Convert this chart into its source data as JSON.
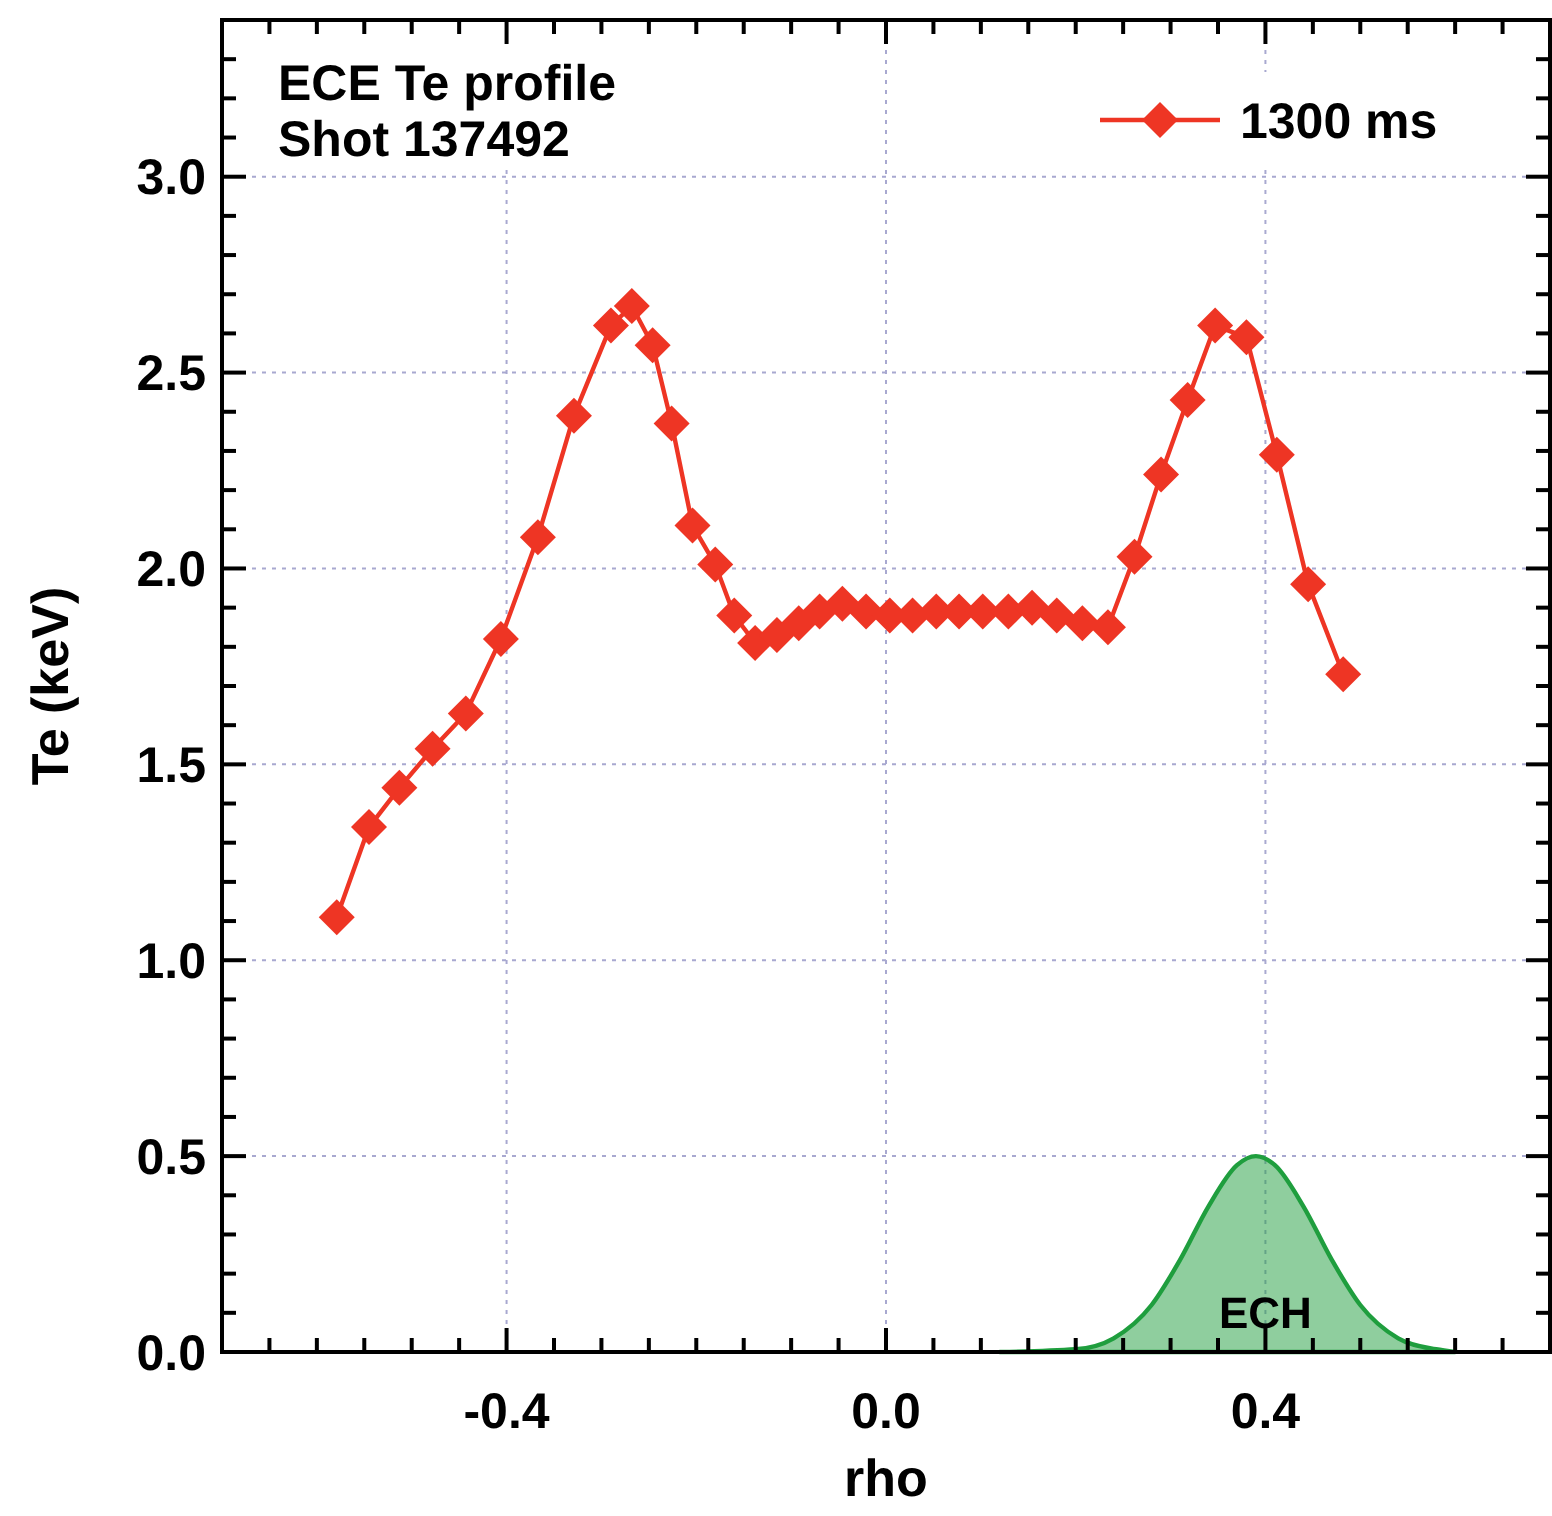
{
  "chart_data": {
    "type": "line",
    "title": "ECE Te profile",
    "subtitle": "Shot 137492",
    "xlabel": "rho",
    "ylabel": "Te (keV)",
    "xlim": [
      -0.7,
      0.7
    ],
    "xticks": [
      {
        "value": -0.65,
        "label": null
      },
      {
        "value": -0.6,
        "label": null
      },
      {
        "value": -0.55,
        "label": null
      },
      {
        "value": -0.5,
        "label": null
      },
      {
        "value": -0.45,
        "label": null
      },
      {
        "value": -0.4,
        "label": "-0.4"
      },
      {
        "value": -0.35,
        "label": null
      },
      {
        "value": -0.3,
        "label": null
      },
      {
        "value": -0.25,
        "label": null
      },
      {
        "value": -0.2,
        "label": null
      },
      {
        "value": -0.15,
        "label": null
      },
      {
        "value": -0.1,
        "label": null
      },
      {
        "value": -0.05,
        "label": null
      },
      {
        "value": 0,
        "label": "0.0"
      },
      {
        "value": 0.05,
        "label": null
      },
      {
        "value": 0.1,
        "label": null
      },
      {
        "value": 0.15,
        "label": null
      },
      {
        "value": 0.2,
        "label": null
      },
      {
        "value": 0.25,
        "label": null
      },
      {
        "value": 0.3,
        "label": null
      },
      {
        "value": 0.35,
        "label": null
      },
      {
        "value": 0.4,
        "label": "0.4"
      },
      {
        "value": 0.45,
        "label": null
      },
      {
        "value": 0.5,
        "label": null
      },
      {
        "value": 0.55,
        "label": null
      },
      {
        "value": 0.6,
        "label": null
      },
      {
        "value": 0.65,
        "label": null
      }
    ],
    "ylim": [
      0,
      3.4
    ],
    "yticks": [
      {
        "value": 0,
        "label": "0.0"
      },
      {
        "value": 0.1,
        "label": null
      },
      {
        "value": 0.2,
        "label": null
      },
      {
        "value": 0.3,
        "label": null
      },
      {
        "value": 0.4,
        "label": null
      },
      {
        "value": 0.5,
        "label": "0.5"
      },
      {
        "value": 0.6,
        "label": null
      },
      {
        "value": 0.7,
        "label": null
      },
      {
        "value": 0.8,
        "label": null
      },
      {
        "value": 0.9,
        "label": null
      },
      {
        "value": 1,
        "label": "1.0"
      },
      {
        "value": 1.1,
        "label": null
      },
      {
        "value": 1.2,
        "label": null
      },
      {
        "value": 1.3,
        "label": null
      },
      {
        "value": 1.4,
        "label": null
      },
      {
        "value": 1.5,
        "label": "1.5"
      },
      {
        "value": 1.6,
        "label": null
      },
      {
        "value": 1.7,
        "label": null
      },
      {
        "value": 1.8,
        "label": null
      },
      {
        "value": 1.9,
        "label": null
      },
      {
        "value": 2,
        "label": "2.0"
      },
      {
        "value": 2.1,
        "label": null
      },
      {
        "value": 2.2,
        "label": null
      },
      {
        "value": 2.3,
        "label": null
      },
      {
        "value": 2.4,
        "label": null
      },
      {
        "value": 2.5,
        "label": "2.5"
      },
      {
        "value": 2.6,
        "label": null
      },
      {
        "value": 2.7,
        "label": null
      },
      {
        "value": 2.8,
        "label": null
      },
      {
        "value": 2.9,
        "label": null
      },
      {
        "value": 3,
        "label": "3.0"
      },
      {
        "value": 3.1,
        "label": null
      },
      {
        "value": 3.2,
        "label": null
      },
      {
        "value": 3.3,
        "label": null
      }
    ],
    "grid": true,
    "legend": "top right",
    "line_style": "solid",
    "series": [
      {
        "name": "1300 ms",
        "color": "#ee3524",
        "marker": "diamond",
        "x": [
          -0.579,
          -0.545,
          -0.513,
          -0.478,
          -0.443,
          -0.406,
          -0.367,
          -0.329,
          -0.29,
          -0.268,
          -0.246,
          -0.226,
          -0.204,
          -0.18,
          -0.16,
          -0.138,
          -0.115,
          -0.092,
          -0.07,
          -0.046,
          -0.021,
          0.004,
          0.028,
          0.053,
          0.077,
          0.102,
          0.129,
          0.154,
          0.18,
          0.207,
          0.234,
          0.262,
          0.29,
          0.318,
          0.347,
          0.38,
          0.412,
          0.445,
          0.482
        ],
        "values": [
          1.11,
          1.34,
          1.44,
          1.54,
          1.63,
          1.82,
          2.08,
          2.39,
          2.62,
          2.67,
          2.57,
          2.37,
          2.11,
          2.01,
          1.88,
          1.81,
          1.83,
          1.86,
          1.89,
          1.91,
          1.89,
          1.88,
          1.88,
          1.89,
          1.89,
          1.89,
          1.89,
          1.9,
          1.88,
          1.86,
          1.85,
          2.03,
          2.24,
          2.43,
          2.62,
          2.59,
          2.29,
          1.96,
          1.73
        ]
      },
      {
        "color": "#1f9e3e",
        "type": "area",
        "x": [
          0.12,
          0.2,
          0.24,
          0.28,
          0.31,
          0.34,
          0.37,
          0.39,
          0.41,
          0.44,
          0.47,
          0.5,
          0.54,
          0.58,
          0.6
        ],
        "values": [
          0,
          0.007,
          0.035,
          0.12,
          0.235,
          0.372,
          0.477,
          0.5,
          0.477,
          0.372,
          0.235,
          0.12,
          0.035,
          0.007,
          0
        ]
      }
    ],
    "annotations": [
      "ECH"
    ]
  }
}
